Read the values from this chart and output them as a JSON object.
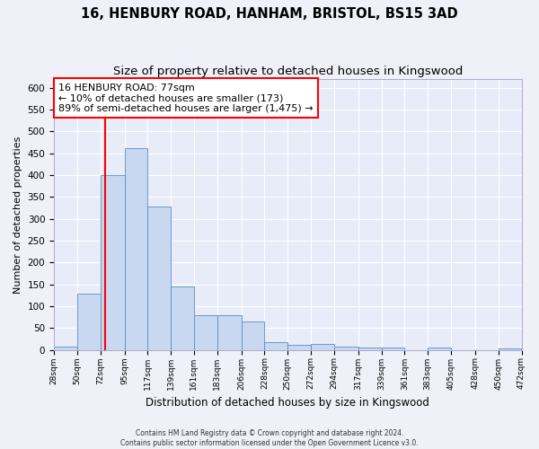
{
  "title": "16, HENBURY ROAD, HANHAM, BRISTOL, BS15 3AD",
  "subtitle": "Size of property relative to detached houses in Kingswood",
  "xlabel": "Distribution of detached houses by size in Kingswood",
  "ylabel": "Number of detached properties",
  "annotation_line1": "16 HENBURY ROAD: 77sqm",
  "annotation_line2": "← 10% of detached houses are smaller (173)",
  "annotation_line3": "89% of semi-detached houses are larger (1,475) →",
  "footer_line1": "Contains HM Land Registry data © Crown copyright and database right 2024.",
  "footer_line2": "Contains public sector information licensed under the Open Government Licence v3.0.",
  "bin_edges": [
    28,
    50,
    72,
    95,
    117,
    139,
    161,
    183,
    206,
    228,
    250,
    272,
    294,
    317,
    339,
    361,
    383,
    405,
    428,
    450,
    472
  ],
  "bar_heights": [
    8,
    128,
    400,
    462,
    328,
    145,
    80,
    80,
    65,
    18,
    11,
    14,
    8,
    6,
    5,
    0,
    5,
    0,
    0,
    3
  ],
  "bar_color": "#c8d8f0",
  "bar_edge_color": "#5a8fc0",
  "red_line_x": 77,
  "ylim": [
    0,
    620
  ],
  "yticks": [
    0,
    50,
    100,
    150,
    200,
    250,
    300,
    350,
    400,
    450,
    500,
    550,
    600
  ],
  "fig_bg": "#f0f0f8",
  "plot_bg": "#e8ecf8",
  "grid_color": "#ffffff",
  "title_fontsize": 10.5,
  "subtitle_fontsize": 9.5,
  "annotation_fontsize": 8
}
